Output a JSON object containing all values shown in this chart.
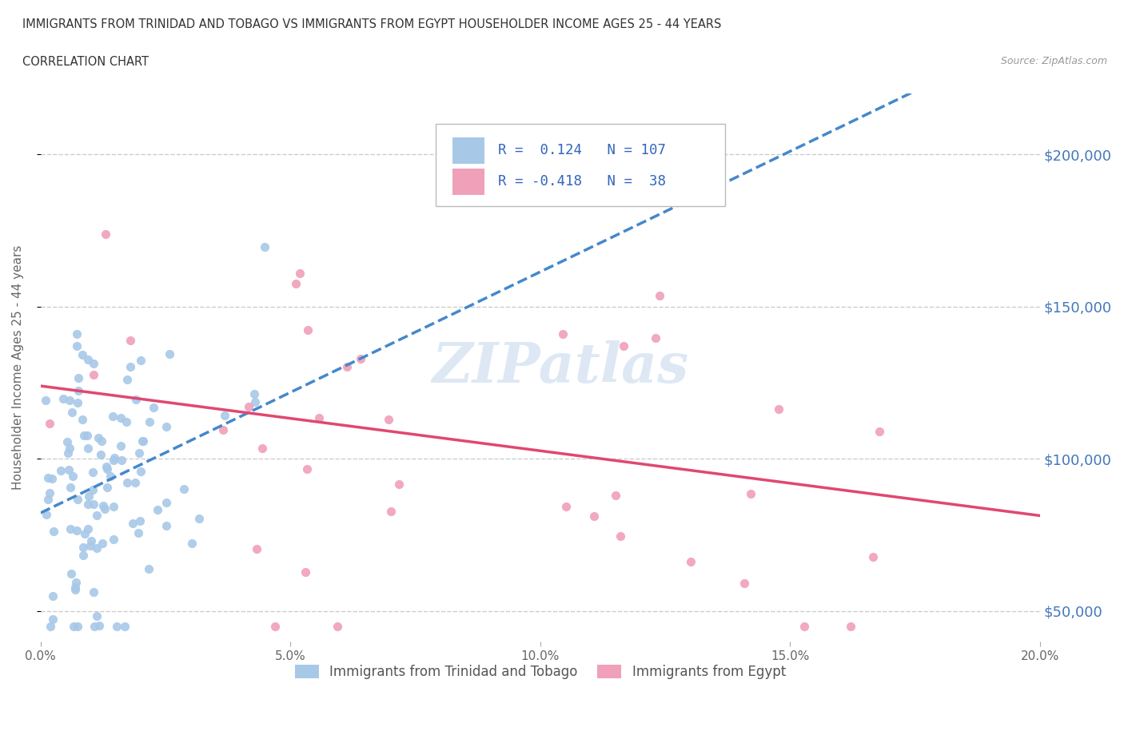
{
  "title_line1": "IMMIGRANTS FROM TRINIDAD AND TOBAGO VS IMMIGRANTS FROM EGYPT HOUSEHOLDER INCOME AGES 25 - 44 YEARS",
  "title_line2": "CORRELATION CHART",
  "source_text": "Source: ZipAtlas.com",
  "ylabel": "Householder Income Ages 25 - 44 years",
  "series1_label": "Immigrants from Trinidad and Tobago",
  "series2_label": "Immigrants from Egypt",
  "series1_R": 0.124,
  "series1_N": 107,
  "series2_R": -0.418,
  "series2_N": 38,
  "series1_color": "#a8c8e8",
  "series2_color": "#f0a0b8",
  "series1_line_color": "#4488cc",
  "series2_line_color": "#e04870",
  "xmin": 0.0,
  "xmax": 0.2,
  "ymin": 40000,
  "ymax": 220000,
  "yticks": [
    50000,
    100000,
    150000,
    200000
  ],
  "ytick_labels": [
    "$50,000",
    "$100,000",
    "$150,000",
    "$200,000"
  ],
  "xticks": [
    0.0,
    0.05,
    0.1,
    0.15,
    0.2
  ],
  "xtick_labels": [
    "0.0%",
    "5.0%",
    "10.0%",
    "15.0%",
    "20.0%"
  ],
  "grid_color": "#cccccc",
  "background_color": "#ffffff",
  "watermark": "ZIPatlas",
  "seed": 12
}
